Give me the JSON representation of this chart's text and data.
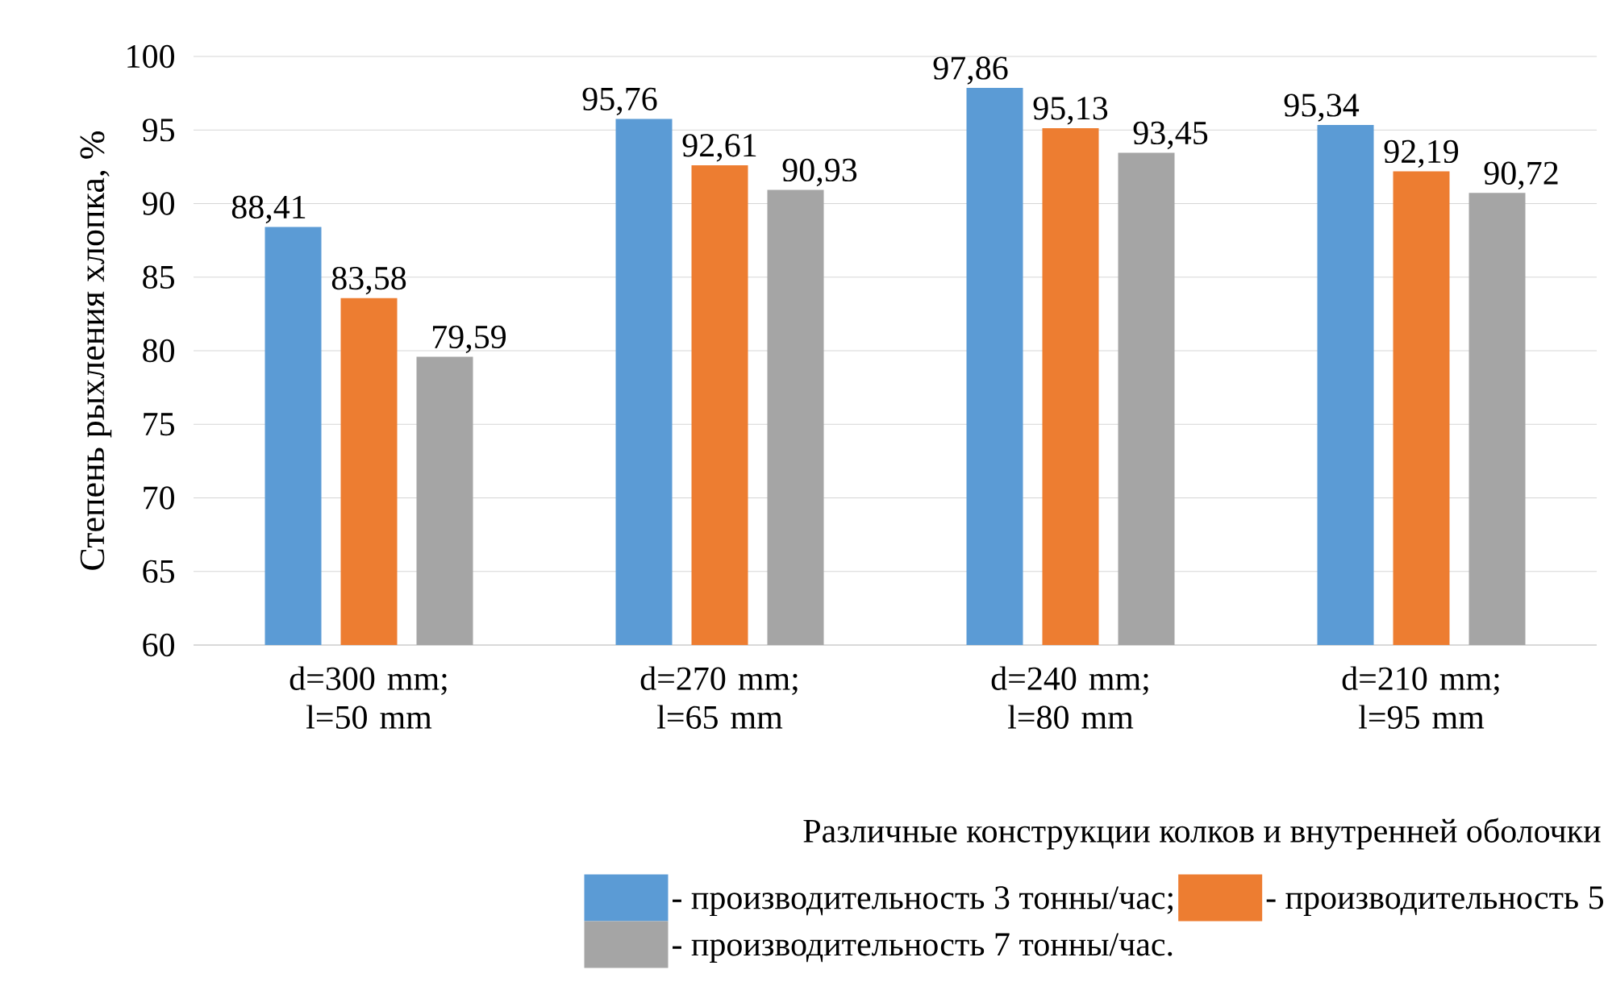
{
  "chart_data": {
    "type": "bar",
    "ylabel": "Степень рыхления хлопка, %",
    "xlabel": "Различные конструкции колков и внутренней оболочки",
    "categories": [
      "d=300 mm; l=50 mm",
      "d=270 mm; l=65 mm",
      "d=240 mm; l=80 mm",
      "d=210 mm; l=95 mm"
    ],
    "series": [
      {
        "name": "- производительность 3 тонны/час;",
        "color": "#5b9bd5",
        "values": [
          88.41,
          95.76,
          97.86,
          95.34
        ],
        "value_labels": [
          "88,41",
          "95,76",
          "97,86",
          "95,34"
        ]
      },
      {
        "name": "- производительность 5",
        "color": "#ed7d31",
        "values": [
          83.58,
          92.61,
          95.13,
          92.19
        ],
        "value_labels": [
          "83,58",
          "92,61",
          "95,13",
          "92,19"
        ]
      },
      {
        "name": "- производительность 7 тонны/час.",
        "color": "#a5a5a5",
        "values": [
          79.59,
          90.93,
          93.45,
          90.72
        ],
        "value_labels": [
          "79,59",
          "90,93",
          "93,45",
          "90,72"
        ]
      }
    ],
    "ylim": [
      60,
      100
    ],
    "yticks": [
      60,
      65,
      70,
      75,
      80,
      85,
      90,
      95,
      100
    ],
    "grid": "y",
    "legend": "bottom"
  }
}
